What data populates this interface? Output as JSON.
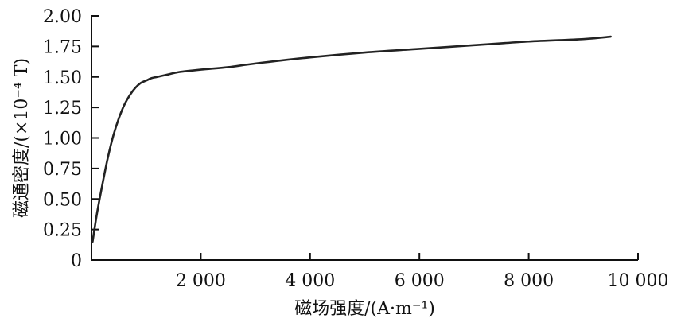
{
  "chart_data": {
    "type": "line",
    "title": "",
    "xlabel": "磁场强度/(A·m⁻¹)",
    "ylabel": "磁通密度/(×10⁻⁴ T)",
    "xlim": [
      0,
      10000
    ],
    "ylim": [
      0,
      2.0
    ],
    "x_ticks": [
      0,
      2000,
      4000,
      6000,
      8000,
      10000
    ],
    "x_tick_labels": [
      "",
      "2 000",
      "4 000",
      "6 000",
      "8 000",
      "10 000"
    ],
    "y_ticks": [
      0,
      0.25,
      0.5,
      0.75,
      1.0,
      1.25,
      1.5,
      1.75,
      2.0
    ],
    "y_tick_labels": [
      "0",
      "0.25",
      "0.50",
      "0.75",
      "1.00",
      "1.25",
      "1.50",
      "1.75",
      "2.00"
    ],
    "grid": false,
    "legend": "none",
    "series": [
      {
        "x": [
          20,
          100,
          200,
          300,
          400,
          500,
          600,
          700,
          800,
          900,
          1000,
          1100,
          1200,
          1400,
          1600,
          2000,
          2500,
          3000,
          4000,
          5000,
          6000,
          7000,
          8000,
          9000,
          9500
        ],
        "y": [
          0.15,
          0.38,
          0.62,
          0.84,
          1.02,
          1.16,
          1.27,
          1.35,
          1.41,
          1.45,
          1.47,
          1.49,
          1.5,
          1.52,
          1.54,
          1.56,
          1.58,
          1.61,
          1.66,
          1.7,
          1.73,
          1.76,
          1.79,
          1.81,
          1.83
        ],
        "color": "#222222"
      }
    ]
  }
}
